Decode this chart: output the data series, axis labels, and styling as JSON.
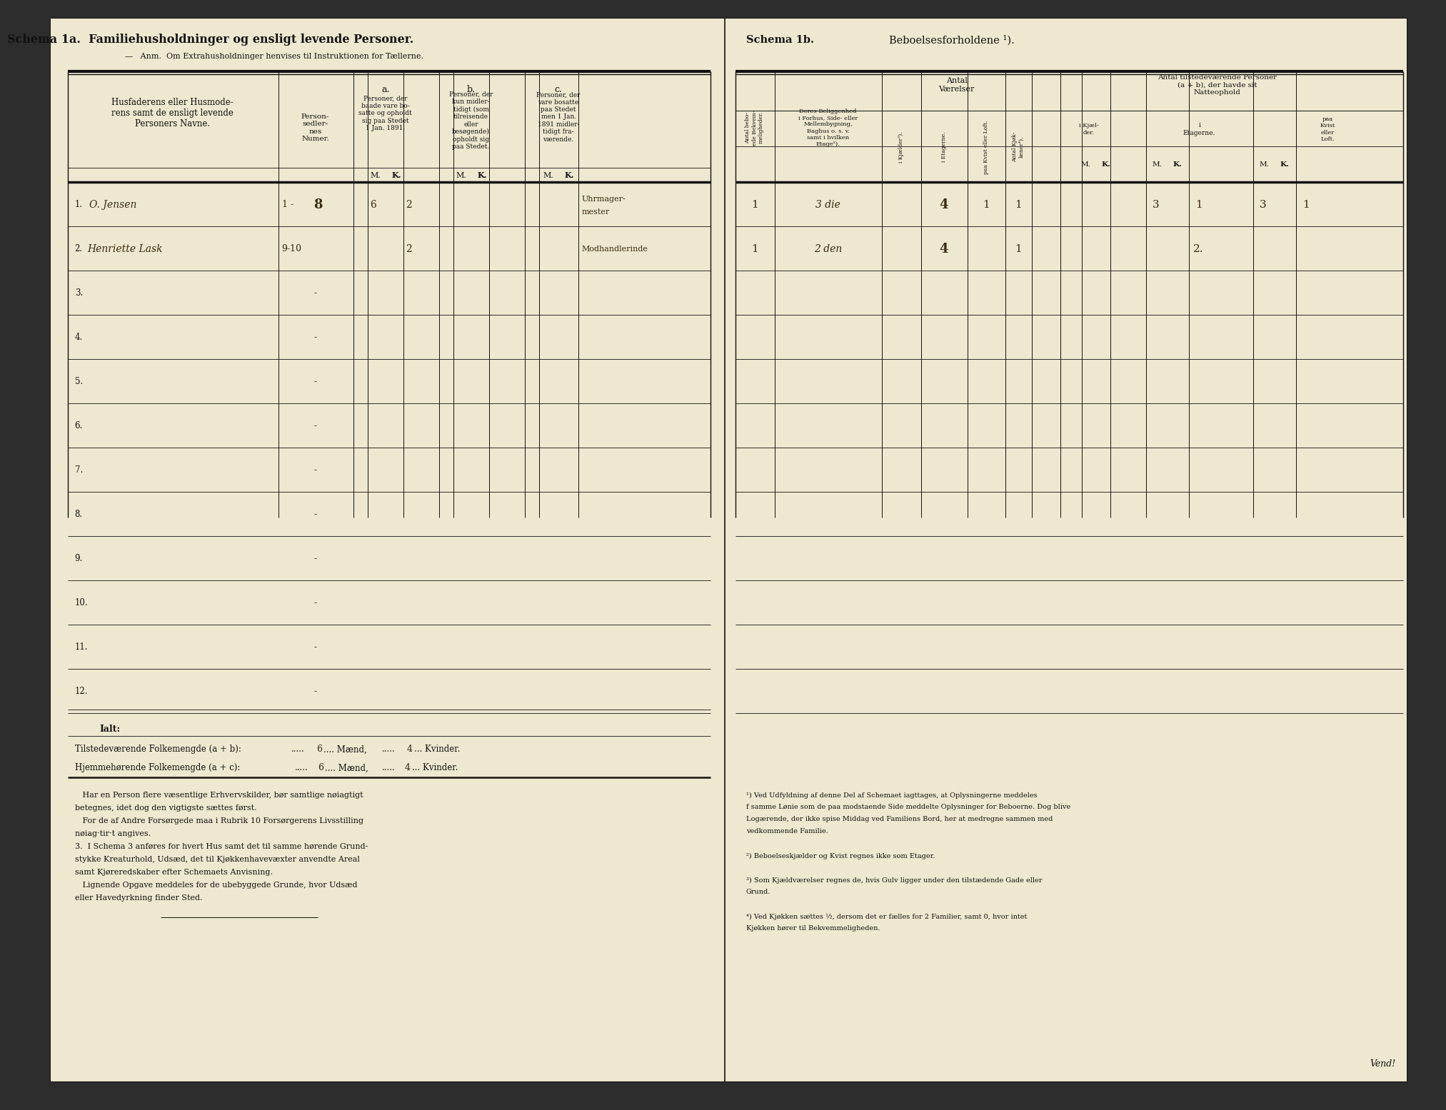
{
  "bg_color": "#eee8d0",
  "dark_bg": "#2d2d2d",
  "border_color": "#111111",
  "text_color": "#111111",
  "ink_color": "#3a2a10",
  "title_left": "Schema 1a.  Familiehusholdninger og ensligt levende Personer.",
  "subtitle_left": "—   Anm.  Om Extrahusholdninger henvises til Instruktionen for Tællerne.",
  "title_right_a": "Schema 1b.",
  "title_right_b": "Beboelsesforholdene ¹).",
  "col_name_header": "Husfaderens eller Husmode-\nrens samt de ensligt levende\nPersoners Navne.",
  "col_num_header": "Person-\nsedler-\nnes\nNumer.",
  "col_a_label": "a.",
  "col_a_text": "Personer, der\nbaade vare bo-\nsatte og opholdt\nsig paa Stedet\n1 Jan. 1891.",
  "col_b_label": "b.",
  "col_b_text": "Personer, der\nkun midler-\ntidigt (som\ntilreisende\neller\nbesøgende)\nopholdt sig\npaa Stedet.",
  "col_c_label": "c.",
  "col_c_text": "Personer, der\nvare bosatte\npaa Stedet\nmen 1 Jan.\n1891 midler-\ntidigt fra-\nværende.",
  "rows": [
    "1.",
    "2.",
    "3.",
    "4.",
    "5.",
    "6.",
    "7.",
    "8.",
    "9.",
    "10.",
    "11.",
    "12."
  ],
  "row1_name": "O. Jensen",
  "row1_num": "1 - 8",
  "row1_am": "6",
  "row1_ak": "2",
  "row1_note1": "Uhrmager-",
  "row1_note2": "mester",
  "row2_name": "Henriette Lask",
  "row2_num": "9-10",
  "row2_ak": "2",
  "row2_note": "Modhandlerinde",
  "ialt": "Ialt:",
  "til_text": "Tilstedeværende Folkemengde (a + b):",
  "til_m": "6",
  "til_mid": "Mænd,",
  "til_k": "4",
  "til_end": "Kvinder.",
  "hj_text": "Hjemmehørende Folkemengde (a + c):",
  "hj_m": "6",
  "hj_mid": "Mænd,",
  "hj_k": "4",
  "hj_end": "Kvinder.",
  "fn1a": "   Har en Person flere væsentlige Erhvervskilder, bør samtlige nøiagtigt",
  "fn1b": "betegnes, idet dog den vigtigste sættes først.",
  "fn2a": "   For de af Andre Forsørgede maa i Rubrik 10 Forsørgerens Livsstilling",
  "fn2b": "nøiag·tir·t angives.",
  "fn3a": "3.  I Schema 3 anføres for hvert Hus samt det til samme hørende Grund-",
  "fn3b": "stykke Kreaturhold, Udsæd, det til Kjøkkenhavevæxter anvendte Areal",
  "fn3c": "samt Kjøreredskaber efter Schemaets Anvisning.",
  "fn4a": "   Lignende Opgave meddeles for de ubebyggede Grunde, hvor Udsæd",
  "fn4b": "eller Havedyrkning finder Sted.",
  "r_col1_h": "Antal bebo-\nede Bekvem-\nmeligheder.",
  "r_col2_h": "Deres Beliggenhed\ni Forhus, Side- eller\nMellembygning,\nBaghus o. s. v.\nsamt i hvilken\nEtage²).",
  "r_col3_h": "Antal\nVærelser",
  "r_sub3a": "i Kjælder³).",
  "r_sub3b": "i Etagerne.",
  "r_sub3c": "paa Kvist eller\nLoft.",
  "r_col4_h": "Antal Kjøk-\nkener⁴).",
  "r_col5_h": "Antal tilstedeværende Personer\n(a + b), der havde sit\nNatteophold",
  "r_sub5a": "i Kjæl-\nder.",
  "r_sub5b": "i\nEtagerne.",
  "r_sub5c": "paa\nKvist\neller\nLoft.",
  "rr1_c1": "1",
  "rr1_c2": "3 die",
  "rr1_etage": "4",
  "rr1_kvist": "1",
  "rr1_kjoek": "1",
  "rr1_5b_m": "3",
  "rr1_5b_k": "1",
  "rr1_5c_m": "3",
  "rr1_5c_k": "1",
  "rr2_c1": "1",
  "rr2_c2": "2 den",
  "rr2_etage": "4",
  "rr2_kjoek": "1",
  "rr2_5b_k": "2.",
  "rfn1": "¹) Ved Udfyldning af denne Del af Schemaet iagttages, at Oplysningerne meddeles",
  "rfn1b": "f samme Lønie som de paa modstaende Side meddelte Oplysninger for Beboerne. Dog blive",
  "rfn1c": "Logærende, der ikke spise Middag ved Familiens Bord, her at medregne sammen med",
  "rfn1d": "vedkommende Familie.",
  "rfn2": "²) Beboelseskjælder og Kvist regnes ikke som Etager.",
  "rfn3": "³) Som Kjældværelser regnes de, hvis Gulv ligger under den tilstædende Gade eller",
  "rfn3b": "Grund.",
  "rfn4": "⁴) Ved Kjøkken sættes ½, dersom det er fælles for 2 Familier, samt 0, hvor intet",
  "rfn4b": "Kjøkken hører til Bekvemmeligheden.",
  "vend": "Vend!"
}
